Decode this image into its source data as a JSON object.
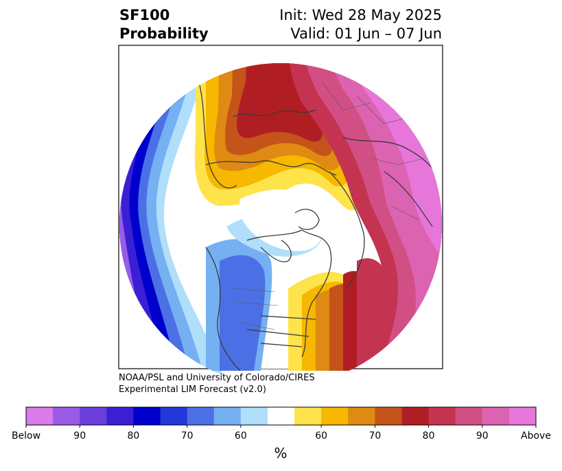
{
  "title": {
    "variable": "SF100",
    "subtitle": "Probability",
    "init": "Init: Wed 28 May 2025",
    "valid": "Valid: 01 Jun – 07 Jun"
  },
  "credit": {
    "line1": "NOAA/PSL and University of Colorado/CIRES",
    "line2": "Experimental LIM Forecast (v2.0)"
  },
  "colorbar": {
    "unit": "%",
    "colors": [
      "#d97be9",
      "#9a5ce6",
      "#6a3fdb",
      "#3b1fd4",
      "#0000cc",
      "#2238d8",
      "#4b70e6",
      "#74b0f2",
      "#b0defb",
      "#ffffff",
      "#ffe34a",
      "#f6b800",
      "#df8a12",
      "#c4541a",
      "#b01e24",
      "#c43450",
      "#d14f85",
      "#dc63b1",
      "#e676da"
    ],
    "tick_labels": [
      "Below",
      "90",
      "80",
      "70",
      "60",
      "60",
      "70",
      "80",
      "90",
      "Above"
    ]
  }
}
